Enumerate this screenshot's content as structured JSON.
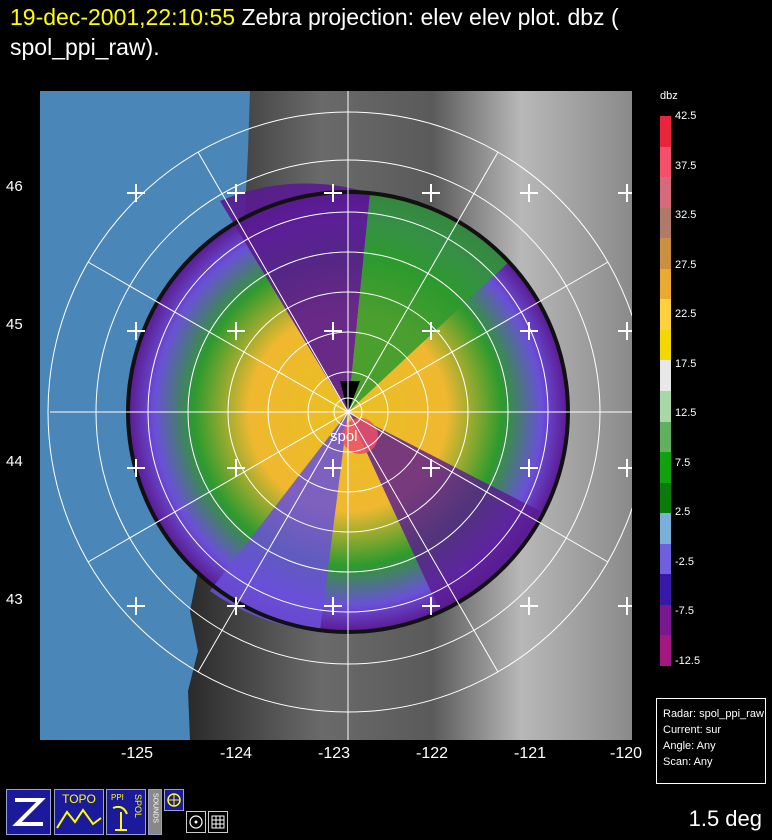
{
  "title": {
    "timestamp": "19-dec-2001,22:10:55",
    "line1": "Zebra projection: elev elev  plot.  dbz (",
    "line2": "spol_ppi_raw)."
  },
  "map": {
    "radar_label": "spol",
    "lat_labels": [
      "46",
      "45",
      "44",
      "43"
    ],
    "lon_labels": [
      "-125",
      "-124",
      "-123",
      "-122",
      "-121",
      "-120"
    ]
  },
  "colorbar": {
    "unit": "dbz",
    "ticks": [
      "42.5",
      "37.5",
      "32.5",
      "27.5",
      "22.5",
      "17.5",
      "12.5",
      "7.5",
      "2.5",
      "-2.5",
      "-7.5",
      "-12.5"
    ],
    "colors": [
      "#e8253a",
      "#f4506a",
      "#d66a7a",
      "#b07a6a",
      "#c99040",
      "#e8aa30",
      "#ffd040",
      "#f2d800",
      "#e8e8e8",
      "#a8d8a8",
      "#60b060",
      "#10a010",
      "#0a7a0a",
      "#78b0d8",
      "#7060e0",
      "#3818a8",
      "#7a1890",
      "#a01880"
    ]
  },
  "info_box": {
    "radar": "Radar: spol_ppi_raw",
    "current": "Current: sur",
    "angle": "Angle: Any",
    "scan": "Scan: Any"
  },
  "toolbar": {
    "topo_label": "TOPO",
    "ppi_label": "PPI",
    "spol_label": "SPOL",
    "sounds_label": "SOUNDS"
  },
  "elevation": "1.5 deg"
}
